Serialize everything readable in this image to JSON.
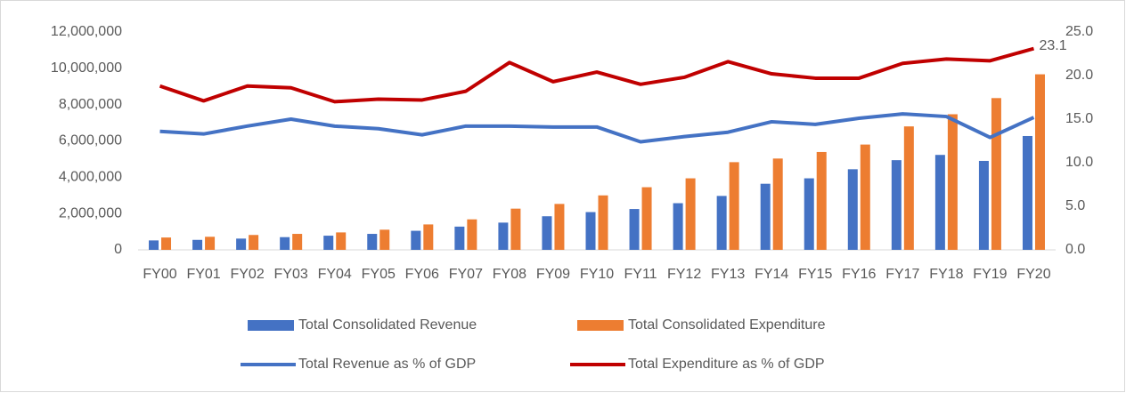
{
  "chart_data": {
    "type": "bar_line",
    "categories": [
      "FY00",
      "FY01",
      "FY02",
      "FY03",
      "FY04",
      "FY05",
      "FY06",
      "FY07",
      "FY08",
      "FY09",
      "FY10",
      "FY11",
      "FY12",
      "FY13",
      "FY14",
      "FY15",
      "FY16",
      "FY17",
      "FY18",
      "FY19",
      "FY20"
    ],
    "series": [
      {
        "name": "Total Consolidated Revenue",
        "type": "bar",
        "color": "#4472c4",
        "values": [
          520000,
          550000,
          620000,
          700000,
          780000,
          880000,
          1050000,
          1280000,
          1500000,
          1850000,
          2080000,
          2250000,
          2570000,
          2970000,
          3640000,
          3940000,
          4440000,
          4940000,
          5230000,
          4900000,
          6270000
        ]
      },
      {
        "name": "Total Consolidated Expenditure",
        "type": "bar",
        "color": "#ed7d31",
        "values": [
          680000,
          720000,
          820000,
          880000,
          960000,
          1110000,
          1400000,
          1680000,
          2270000,
          2530000,
          3000000,
          3450000,
          3940000,
          4830000,
          5030000,
          5390000,
          5800000,
          6800000,
          7470000,
          8360000,
          9670000
        ]
      },
      {
        "name": "Total Revenue as % of GDP",
        "type": "line",
        "axis": "y2",
        "color": "#4472c4",
        "values": [
          13.6,
          13.3,
          14.2,
          15.0,
          14.2,
          13.9,
          13.2,
          14.2,
          14.2,
          14.1,
          14.1,
          12.4,
          13.0,
          13.5,
          14.7,
          14.4,
          15.1,
          15.6,
          15.3,
          12.9,
          15.2
        ]
      },
      {
        "name": "Total Expenditure as % of GDP",
        "type": "line",
        "axis": "y2",
        "color": "#c00000",
        "values": [
          18.8,
          17.1,
          18.8,
          18.6,
          17.0,
          17.3,
          17.2,
          18.2,
          21.5,
          19.3,
          20.4,
          19.0,
          19.8,
          21.6,
          20.2,
          19.7,
          19.7,
          21.4,
          21.9,
          21.7,
          23.1
        ],
        "labeled_index": 20
      }
    ],
    "ylim": [
      0,
      12000000
    ],
    "yticks": [
      0,
      {
        "value": 2000000,
        "label": "2,000,000"
      },
      {
        "value": 4000000,
        "label": "4,000,000"
      },
      {
        "value": 6000000,
        "label": "6,000,000"
      },
      {
        "value": 8000000,
        "label": "8,000,000"
      },
      {
        "value": 10000000,
        "label": "10,000,000"
      },
      {
        "value": 12000000,
        "label": "12,000,000"
      }
    ],
    "y2lim": [
      0,
      25
    ],
    "y2ticks": [
      {
        "value": 0,
        "label": "0.0"
      },
      {
        "value": 5,
        "label": "5.0"
      },
      {
        "value": 10,
        "label": "10.0"
      },
      {
        "value": 15,
        "label": "15.0"
      },
      {
        "value": 20,
        "label": "20.0"
      },
      {
        "value": 25,
        "label": "25.0"
      }
    ],
    "legend": "bottom"
  }
}
